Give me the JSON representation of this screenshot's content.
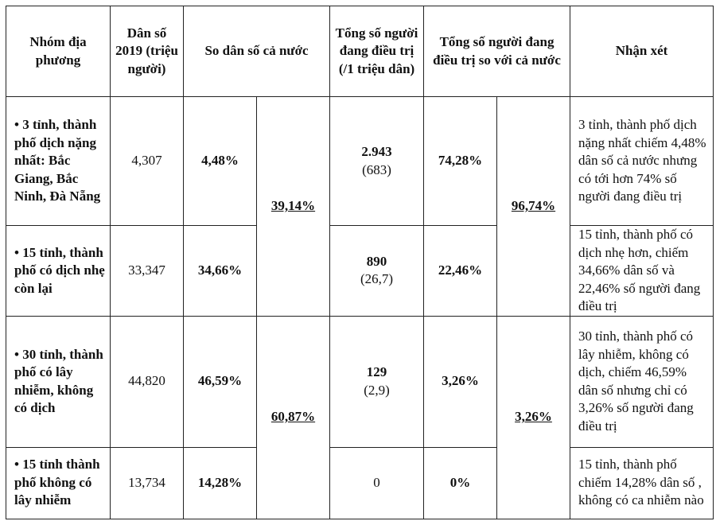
{
  "headers": {
    "group": "Nhóm địa phương",
    "population": "Dân số 2019 (triệu người)",
    "share_population": "So dân số cả nước",
    "treating": "Tổng số người đang điều trị (/1 triệu dân)",
    "share_treating": "Tổng số người đang điều trị so với cả nước",
    "comment": "Nhận xét"
  },
  "merged": {
    "pop_share_top": "39,14%",
    "pop_share_bottom": "60,87%",
    "treat_share_top": "96,74%",
    "treat_share_bottom": "3,26%"
  },
  "rows": [
    {
      "group": "• 3 tỉnh, thành phố dịch nặng nhất: Bắc Giang, Bắc Ninh, Đà Nẵng",
      "population": "4,307",
      "pop_share": "4,48%",
      "treating": "2.943",
      "per_million": "(683)",
      "treat_share": "74,28%",
      "comment": "3 tỉnh, thành phố dịch nặng nhất chiếm 4,48% dân số cả nước nhưng có tới hơn 74% số người đang điều trị"
    },
    {
      "group": "• 15 tỉnh, thành phố có dịch nhẹ còn lại",
      "population": "33,347",
      "pop_share": "34,66%",
      "treating": "890",
      "per_million": "(26,7)",
      "treat_share": "22,46%",
      "comment": "15 tỉnh, thành phố có dịch nhẹ hơn, chiếm 34,66% dân số và 22,46% số người đang điều trị"
    },
    {
      "group": "• 30 tỉnh, thành phố có lây nhiễm, không có dịch",
      "population": "44,820",
      "pop_share": "46,59%",
      "treating": "129",
      "per_million": "(2,9)",
      "treat_share": "3,26%",
      "comment": "30 tỉnh, thành phố có lây nhiễm, không có dịch, chiếm 46,59% dân số nhưng chỉ có 3,26% số người đang điều trị"
    },
    {
      "group": "• 15 tỉnh thành phố không có lây nhiễm",
      "population": "13,734",
      "pop_share": "14,28%",
      "treating": "0",
      "per_million": "",
      "treat_share": "0%",
      "comment": "15 tỉnh, thành phố chiếm 14,28% dân số , không có ca nhiễm nào"
    }
  ]
}
